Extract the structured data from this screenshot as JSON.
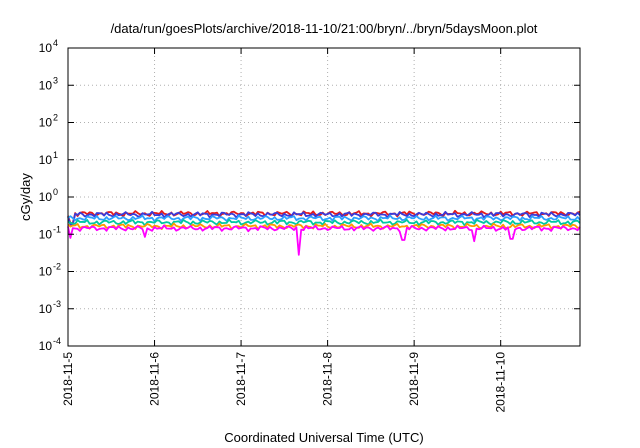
{
  "chart_data": {
    "type": "line",
    "title": "/data/run/goesPlots/archive/2018-11-10/21:00/bryn/../bryn/5daysMoon.plot",
    "xlabel": "Coordinated Universal Time (UTC)",
    "ylabel": "cGy/day",
    "y_scale": "log",
    "ylim": [
      0.0001,
      10000
    ],
    "y_ticks": [
      {
        "base": "10",
        "exp": "4",
        "value": 10000
      },
      {
        "base": "10",
        "exp": "3",
        "value": 1000
      },
      {
        "base": "10",
        "exp": "2",
        "value": 100
      },
      {
        "base": "10",
        "exp": "1",
        "value": 10
      },
      {
        "base": "10",
        "exp": "0",
        "value": 1
      },
      {
        "base": "10",
        "exp": "-1",
        "value": 0.1
      },
      {
        "base": "10",
        "exp": "-2",
        "value": 0.01
      },
      {
        "base": "10",
        "exp": "-3",
        "value": 0.001
      },
      {
        "base": "10",
        "exp": "-4",
        "value": 0.0001
      }
    ],
    "xlim": [
      "2018-11-05",
      "2018-11-10T22:00"
    ],
    "x_ticks": [
      "2018-11-5",
      "2018-11-6",
      "2018-11-7",
      "2018-11-8",
      "2018-11-9",
      "2018-11-10"
    ],
    "grid": true,
    "series": [
      {
        "color": "#e41a1c",
        "level": 0.36,
        "dips": [
          {
            "date": "2018-11-05T01:00",
            "value": 0.2
          }
        ]
      },
      {
        "color": "#3a3ad8",
        "level": 0.34,
        "dips": [
          {
            "date": "2018-11-05T01:00",
            "value": 0.18
          }
        ]
      },
      {
        "color": "#2ca0ff",
        "level": 0.27,
        "dips": []
      },
      {
        "color": "#00c8a0",
        "level": 0.21,
        "dips": []
      },
      {
        "color": "#ff9900",
        "level": 0.165,
        "dips": []
      },
      {
        "color": "#ff00ff",
        "level": 0.145,
        "dips": [
          {
            "date": "2018-11-05T00:30",
            "value": 0.08
          },
          {
            "date": "2018-11-05T21:30",
            "value": 0.085
          },
          {
            "date": "2018-11-07T16:00",
            "value": 0.028
          },
          {
            "date": "2018-11-08T21:00",
            "value": 0.07
          },
          {
            "date": "2018-11-09T16:30",
            "value": 0.065
          },
          {
            "date": "2018-11-10T03:00",
            "value": 0.075
          }
        ]
      }
    ]
  }
}
